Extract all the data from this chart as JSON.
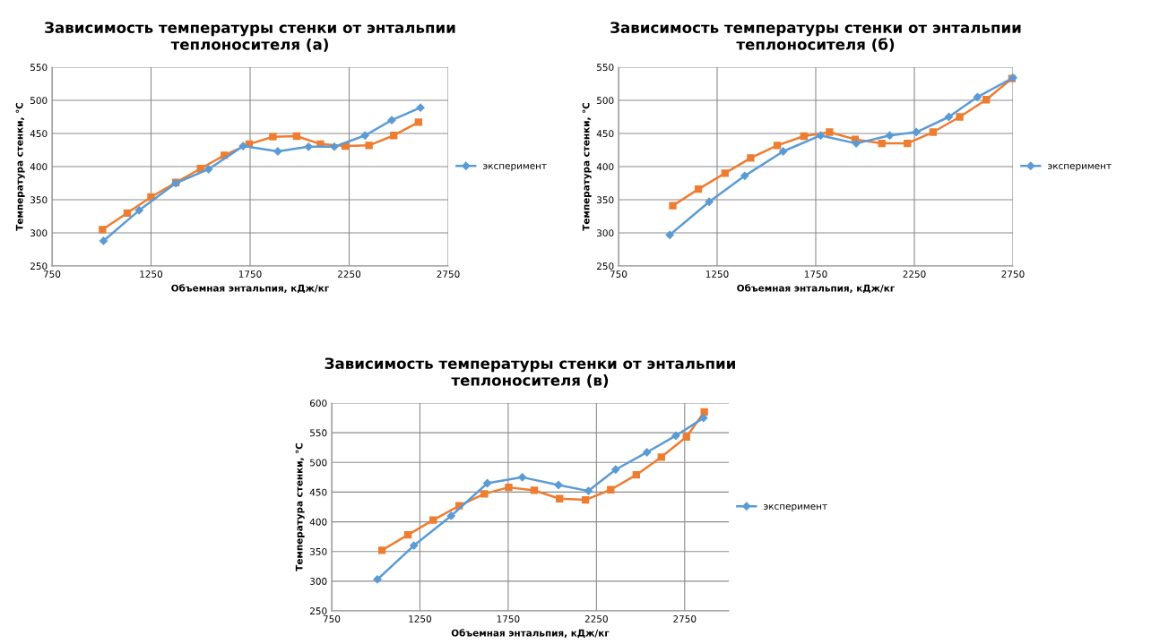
{
  "chart_data": [
    {
      "type": "line",
      "title": "Зависимость температуры стенки от энтальпии\nтеплоносителя (а)",
      "xlabel": "Объемная энтальпия, кДж/кг",
      "ylabel": "Температура стенки, ℃",
      "xlim": [
        750,
        2750
      ],
      "xticks": [
        750,
        1250,
        1750,
        2250,
        2750
      ],
      "ylim": [
        250,
        550
      ],
      "yticks": [
        250,
        300,
        350,
        400,
        450,
        500,
        550
      ],
      "grid": true,
      "legend": "right",
      "series": [
        {
          "name": "эксперимент",
          "color": "#5b9bd5",
          "marker": "diamond",
          "x": [
            1010,
            1190,
            1375,
            1540,
            1715,
            1890,
            2045,
            2175,
            2330,
            2465,
            2610
          ],
          "values": [
            288,
            334,
            375,
            396,
            431,
            423,
            430,
            430,
            447,
            470,
            489
          ]
        },
        {
          "color": "#ed7d31",
          "marker": "square",
          "x": [
            1005,
            1130,
            1250,
            1375,
            1500,
            1620,
            1745,
            1865,
            1985,
            2105,
            2230,
            2350,
            2475,
            2600
          ],
          "values": [
            305,
            330,
            354,
            376,
            397,
            417,
            434,
            445,
            446,
            434,
            431,
            432,
            447,
            467
          ]
        }
      ]
    },
    {
      "type": "line",
      "title": "Зависимость температуры стенки от энтальпии\nтеплоносителя (б)",
      "xlabel": "Объемная энтальпия, кДж/кг",
      "ylabel": "Температура стенки, ℃",
      "xlim": [
        750,
        2750
      ],
      "xticks": [
        750,
        1250,
        1750,
        2250,
        2750
      ],
      "ylim": [
        250,
        550
      ],
      "yticks": [
        250,
        300,
        350,
        400,
        450,
        500,
        550
      ],
      "grid": true,
      "legend": "right",
      "series": [
        {
          "name": "эксперимент",
          "color": "#5b9bd5",
          "marker": "diamond",
          "x": [
            1010,
            1210,
            1390,
            1585,
            1775,
            1955,
            2125,
            2260,
            2425,
            2570,
            2750
          ],
          "values": [
            297,
            347,
            386,
            423,
            447,
            435,
            447,
            452,
            475,
            505,
            534
          ]
        },
        {
          "color": "#ed7d31",
          "marker": "square",
          "x": [
            1025,
            1155,
            1290,
            1420,
            1555,
            1690,
            1820,
            1950,
            2085,
            2215,
            2345,
            2480,
            2615,
            2745
          ],
          "values": [
            341,
            366,
            390,
            413,
            432,
            446,
            452,
            441,
            435,
            435,
            452,
            475,
            501,
            533
          ]
        }
      ]
    },
    {
      "type": "line",
      "title": "Зависимость температуры стенки от энтальпии\nтеплоносителя (в)",
      "xlabel": "Объемная энтальпия, кДж/кг",
      "ylabel": "Температура стенки, ℃",
      "xlim": [
        750,
        3000
      ],
      "xticks": [
        750,
        1250,
        1750,
        2250,
        2750
      ],
      "ylim": [
        250,
        600
      ],
      "yticks": [
        250,
        300,
        350,
        400,
        450,
        500,
        550,
        600
      ],
      "grid": true,
      "legend": "right",
      "series": [
        {
          "name": "эксперимент",
          "color": "#5b9bd5",
          "marker": "diamond",
          "x": [
            1009,
            1216,
            1427,
            1632,
            1830,
            2035,
            2205,
            2359,
            2536,
            2700,
            2857
          ],
          "values": [
            303,
            360,
            410,
            465,
            475,
            462,
            452,
            488,
            517,
            545,
            575
          ]
        },
        {
          "color": "#ed7d31",
          "marker": "square",
          "x": [
            1035,
            1182,
            1325,
            1472,
            1615,
            1753,
            1898,
            2041,
            2188,
            2331,
            2476,
            2618,
            2760,
            2861
          ],
          "values": [
            352,
            378,
            403,
            427,
            447,
            458,
            453,
            439,
            437,
            454,
            479,
            509,
            543,
            585
          ]
        }
      ]
    }
  ]
}
